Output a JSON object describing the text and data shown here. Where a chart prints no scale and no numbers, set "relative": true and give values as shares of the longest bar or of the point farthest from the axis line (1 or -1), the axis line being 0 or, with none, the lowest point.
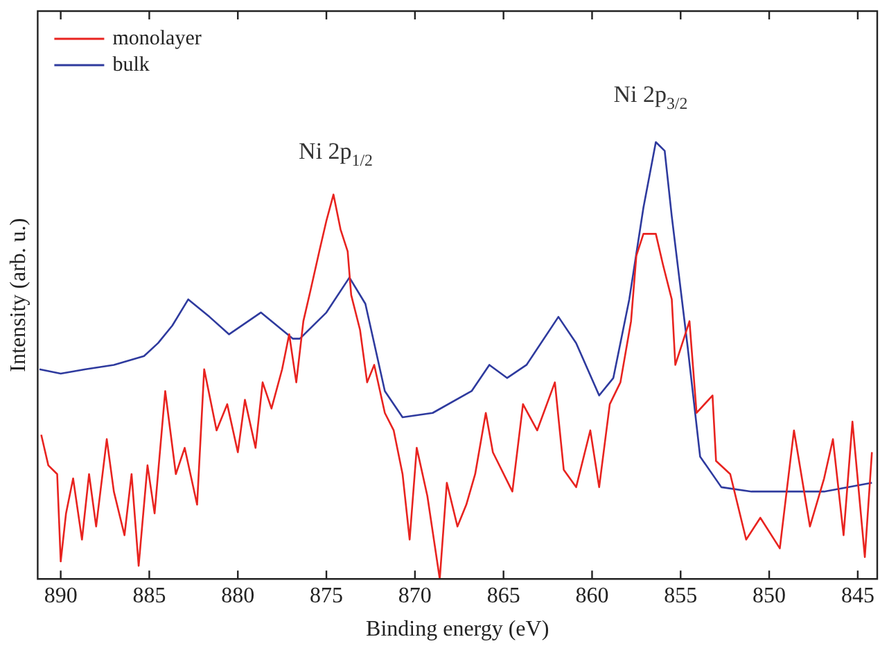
{
  "chart_data": {
    "type": "line",
    "xlabel": "Binding energy (eV)",
    "ylabel": "Intensity (arb. u.)",
    "relative": true,
    "tick_labels": "x",
    "legend": "top left",
    "grid": false,
    "marker": "none",
    "line_style": "solid",
    "xlim": [
      891.3,
      843.9
    ],
    "xticks": [
      890,
      885,
      880,
      875,
      870,
      865,
      860,
      855,
      850,
      845
    ],
    "annotations": [
      "Ni 2p$_{1/2}$",
      "Ni 2p$_{3/2}$"
    ],
    "series": [
      {
        "name": "monolayer",
        "color": "#e8231f",
        "x": [
          891.1,
          890.7,
          890.2,
          890.0,
          889.7,
          889.3,
          888.8,
          888.4,
          888.0,
          887.4,
          887.0,
          886.4,
          886.0,
          885.6,
          885.1,
          884.7,
          884.1,
          883.5,
          883.0,
          882.3,
          881.9,
          881.2,
          880.6,
          880.0,
          879.6,
          879.0,
          878.6,
          878.1,
          877.5,
          877.1,
          876.7,
          876.3,
          875.9,
          875.4,
          875.0,
          874.6,
          874.2,
          873.8,
          873.6,
          873.1,
          872.7,
          872.3,
          871.7,
          871.2,
          870.7,
          870.3,
          869.9,
          869.3,
          868.6,
          868.2,
          867.6,
          867.1,
          866.6,
          866.0,
          865.6,
          864.5,
          863.9,
          863.1,
          862.1,
          861.6,
          860.9,
          860.1,
          859.6,
          859.0,
          858.4,
          857.8,
          857.5,
          857.1,
          856.4,
          856.0,
          855.5,
          855.3,
          854.5,
          854.1,
          853.2,
          853.0,
          852.2,
          851.3,
          850.5,
          849.4,
          848.6,
          847.7,
          846.9,
          846.4,
          845.8,
          845.3,
          844.6,
          844.2
        ],
        "values": [
          0.33,
          0.26,
          0.24,
          0.04,
          0.15,
          0.23,
          0.09,
          0.24,
          0.12,
          0.32,
          0.2,
          0.1,
          0.24,
          0.03,
          0.26,
          0.15,
          0.43,
          0.24,
          0.3,
          0.17,
          0.48,
          0.34,
          0.4,
          0.29,
          0.41,
          0.3,
          0.45,
          0.39,
          0.48,
          0.56,
          0.45,
          0.59,
          0.66,
          0.75,
          0.82,
          0.88,
          0.8,
          0.75,
          0.65,
          0.57,
          0.45,
          0.49,
          0.38,
          0.34,
          0.24,
          0.09,
          0.3,
          0.19,
          0.0,
          0.22,
          0.12,
          0.17,
          0.24,
          0.38,
          0.29,
          0.2,
          0.4,
          0.34,
          0.45,
          0.25,
          0.21,
          0.34,
          0.21,
          0.4,
          0.45,
          0.59,
          0.74,
          0.79,
          0.79,
          0.72,
          0.64,
          0.49,
          0.59,
          0.38,
          0.42,
          0.27,
          0.24,
          0.09,
          0.14,
          0.07,
          0.34,
          0.12,
          0.23,
          0.32,
          0.1,
          0.36,
          0.05,
          0.29
        ]
      },
      {
        "name": "bulk",
        "color": "#2e3a9e",
        "x": [
          891.2,
          890.0,
          888.6,
          887.0,
          885.3,
          884.5,
          883.7,
          882.8,
          881.6,
          880.5,
          878.7,
          876.9,
          876.5,
          875.0,
          873.7,
          872.8,
          871.7,
          870.7,
          869.0,
          866.8,
          865.8,
          864.8,
          863.7,
          861.9,
          860.9,
          859.6,
          858.8,
          857.9,
          857.1,
          856.4,
          855.9,
          855.5,
          854.6,
          853.9,
          852.7,
          851.0,
          849.7,
          846.9,
          844.2
        ],
        "values": [
          0.48,
          0.47,
          0.48,
          0.49,
          0.51,
          0.54,
          0.58,
          0.64,
          0.6,
          0.56,
          0.61,
          0.55,
          0.55,
          0.61,
          0.69,
          0.63,
          0.43,
          0.37,
          0.38,
          0.43,
          0.49,
          0.46,
          0.49,
          0.6,
          0.54,
          0.42,
          0.46,
          0.64,
          0.85,
          1,
          0.98,
          0.83,
          0.53,
          0.28,
          0.21,
          0.2,
          0.2,
          0.2,
          0.22
        ]
      }
    ]
  }
}
